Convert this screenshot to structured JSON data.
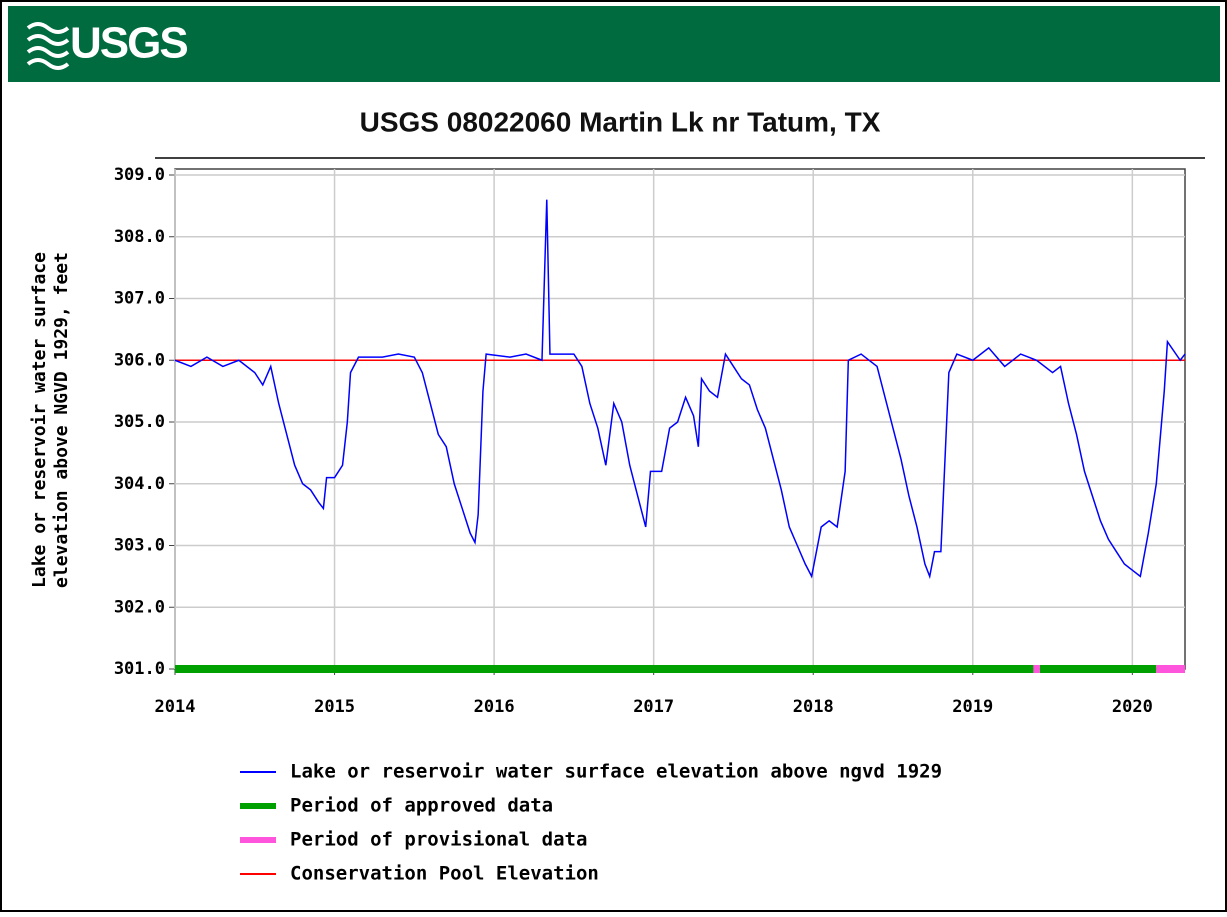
{
  "header": {
    "logo": "USGS"
  },
  "chart_data": {
    "type": "line",
    "title": "USGS 08022060 Martin Lk nr Tatum, TX",
    "y_label": [
      "Lake or reservoir water surface",
      "elevation above NGVD 1929, feet"
    ],
    "xlim": [
      2014,
      2020.33
    ],
    "xticks": [
      2014,
      2015,
      2016,
      2017,
      2018,
      2019,
      2020
    ],
    "ylim": [
      301,
      309
    ],
    "yticks": [
      {
        "value": 301,
        "label": "301.0"
      },
      {
        "value": 302,
        "label": "302.0"
      },
      {
        "value": 303,
        "label": "303.0"
      },
      {
        "value": 304,
        "label": "304.0"
      },
      {
        "value": 305,
        "label": "305.0"
      },
      {
        "value": 306,
        "label": "306.0"
      },
      {
        "value": 307,
        "label": "307.0"
      },
      {
        "value": 308,
        "label": "308.0"
      },
      {
        "value": 309,
        "label": "309.0"
      }
    ],
    "grid": true,
    "series": [
      {
        "name": "Lake or reservoir water surface elevation above ngvd 1929",
        "color": "#0000ff",
        "x": [
          2014.0,
          2014.1,
          2014.2,
          2014.3,
          2014.4,
          2014.5,
          2014.55,
          2014.6,
          2014.65,
          2014.7,
          2014.75,
          2014.8,
          2014.85,
          2014.9,
          2014.93,
          2014.95,
          2015.0,
          2015.05,
          2015.08,
          2015.1,
          2015.15,
          2015.3,
          2015.4,
          2015.5,
          2015.55,
          2015.6,
          2015.65,
          2015.7,
          2015.75,
          2015.8,
          2015.85,
          2015.88,
          2015.9,
          2015.93,
          2015.95,
          2016.1,
          2016.2,
          2016.3,
          2016.33,
          2016.35,
          2016.5,
          2016.55,
          2016.6,
          2016.65,
          2016.7,
          2016.75,
          2016.8,
          2016.85,
          2016.9,
          2016.95,
          2016.98,
          2017.05,
          2017.1,
          2017.15,
          2017.2,
          2017.25,
          2017.28,
          2017.3,
          2017.35,
          2017.4,
          2017.45,
          2017.5,
          2017.55,
          2017.6,
          2017.65,
          2017.7,
          2017.75,
          2017.8,
          2017.85,
          2017.9,
          2017.95,
          2017.99,
          2018.05,
          2018.1,
          2018.15,
          2018.2,
          2018.22,
          2018.3,
          2018.4,
          2018.45,
          2018.5,
          2018.55,
          2018.6,
          2018.65,
          2018.7,
          2018.73,
          2018.76,
          2018.8,
          2018.85,
          2018.9,
          2019.0,
          2019.1,
          2019.2,
          2019.3,
          2019.4,
          2019.5,
          2019.55,
          2019.6,
          2019.65,
          2019.7,
          2019.75,
          2019.8,
          2019.85,
          2019.9,
          2019.95,
          2020.0,
          2020.05,
          2020.1,
          2020.15,
          2020.2,
          2020.22,
          2020.3,
          2020.33
        ],
        "values": [
          306.0,
          305.9,
          306.05,
          305.9,
          306.0,
          305.8,
          305.6,
          305.9,
          305.3,
          304.8,
          304.3,
          304.0,
          303.9,
          303.7,
          303.6,
          304.1,
          304.1,
          304.3,
          305.0,
          305.8,
          306.05,
          306.05,
          306.1,
          306.05,
          305.8,
          305.3,
          304.8,
          304.6,
          304.0,
          303.6,
          303.2,
          303.05,
          303.5,
          305.5,
          306.1,
          306.05,
          306.1,
          306.0,
          308.6,
          306.1,
          306.1,
          305.9,
          305.3,
          304.9,
          304.3,
          305.3,
          305.0,
          304.3,
          303.8,
          303.3,
          304.2,
          304.2,
          304.9,
          305.0,
          305.4,
          305.1,
          304.6,
          305.7,
          305.5,
          305.4,
          306.1,
          305.9,
          305.7,
          305.6,
          305.2,
          304.9,
          304.4,
          303.9,
          303.3,
          303.0,
          302.7,
          302.5,
          303.3,
          303.4,
          303.3,
          304.2,
          306.0,
          306.1,
          305.9,
          305.4,
          304.9,
          304.4,
          303.8,
          303.3,
          302.7,
          302.5,
          302.9,
          302.9,
          305.8,
          306.1,
          306.0,
          306.2,
          305.9,
          306.1,
          306.0,
          305.8,
          305.9,
          305.3,
          304.8,
          304.2,
          303.8,
          303.4,
          303.1,
          302.9,
          302.7,
          302.6,
          302.5,
          303.2,
          304.0,
          305.5,
          306.3,
          306.0,
          306.1
        ]
      }
    ],
    "periods": [
      {
        "name": "Period of approved data",
        "color": "#00a000",
        "ranges": [
          [
            2014,
            2019.38
          ],
          [
            2019.42,
            2020.15
          ]
        ]
      },
      {
        "name": "Period of provisional data",
        "color": "#ff55dd",
        "ranges": [
          [
            2019.38,
            2019.42
          ],
          [
            2020.15,
            2020.33
          ]
        ]
      }
    ],
    "reference_line": {
      "name": "Conservation Pool Elevation",
      "color": "#ff0000",
      "value": 306
    }
  }
}
